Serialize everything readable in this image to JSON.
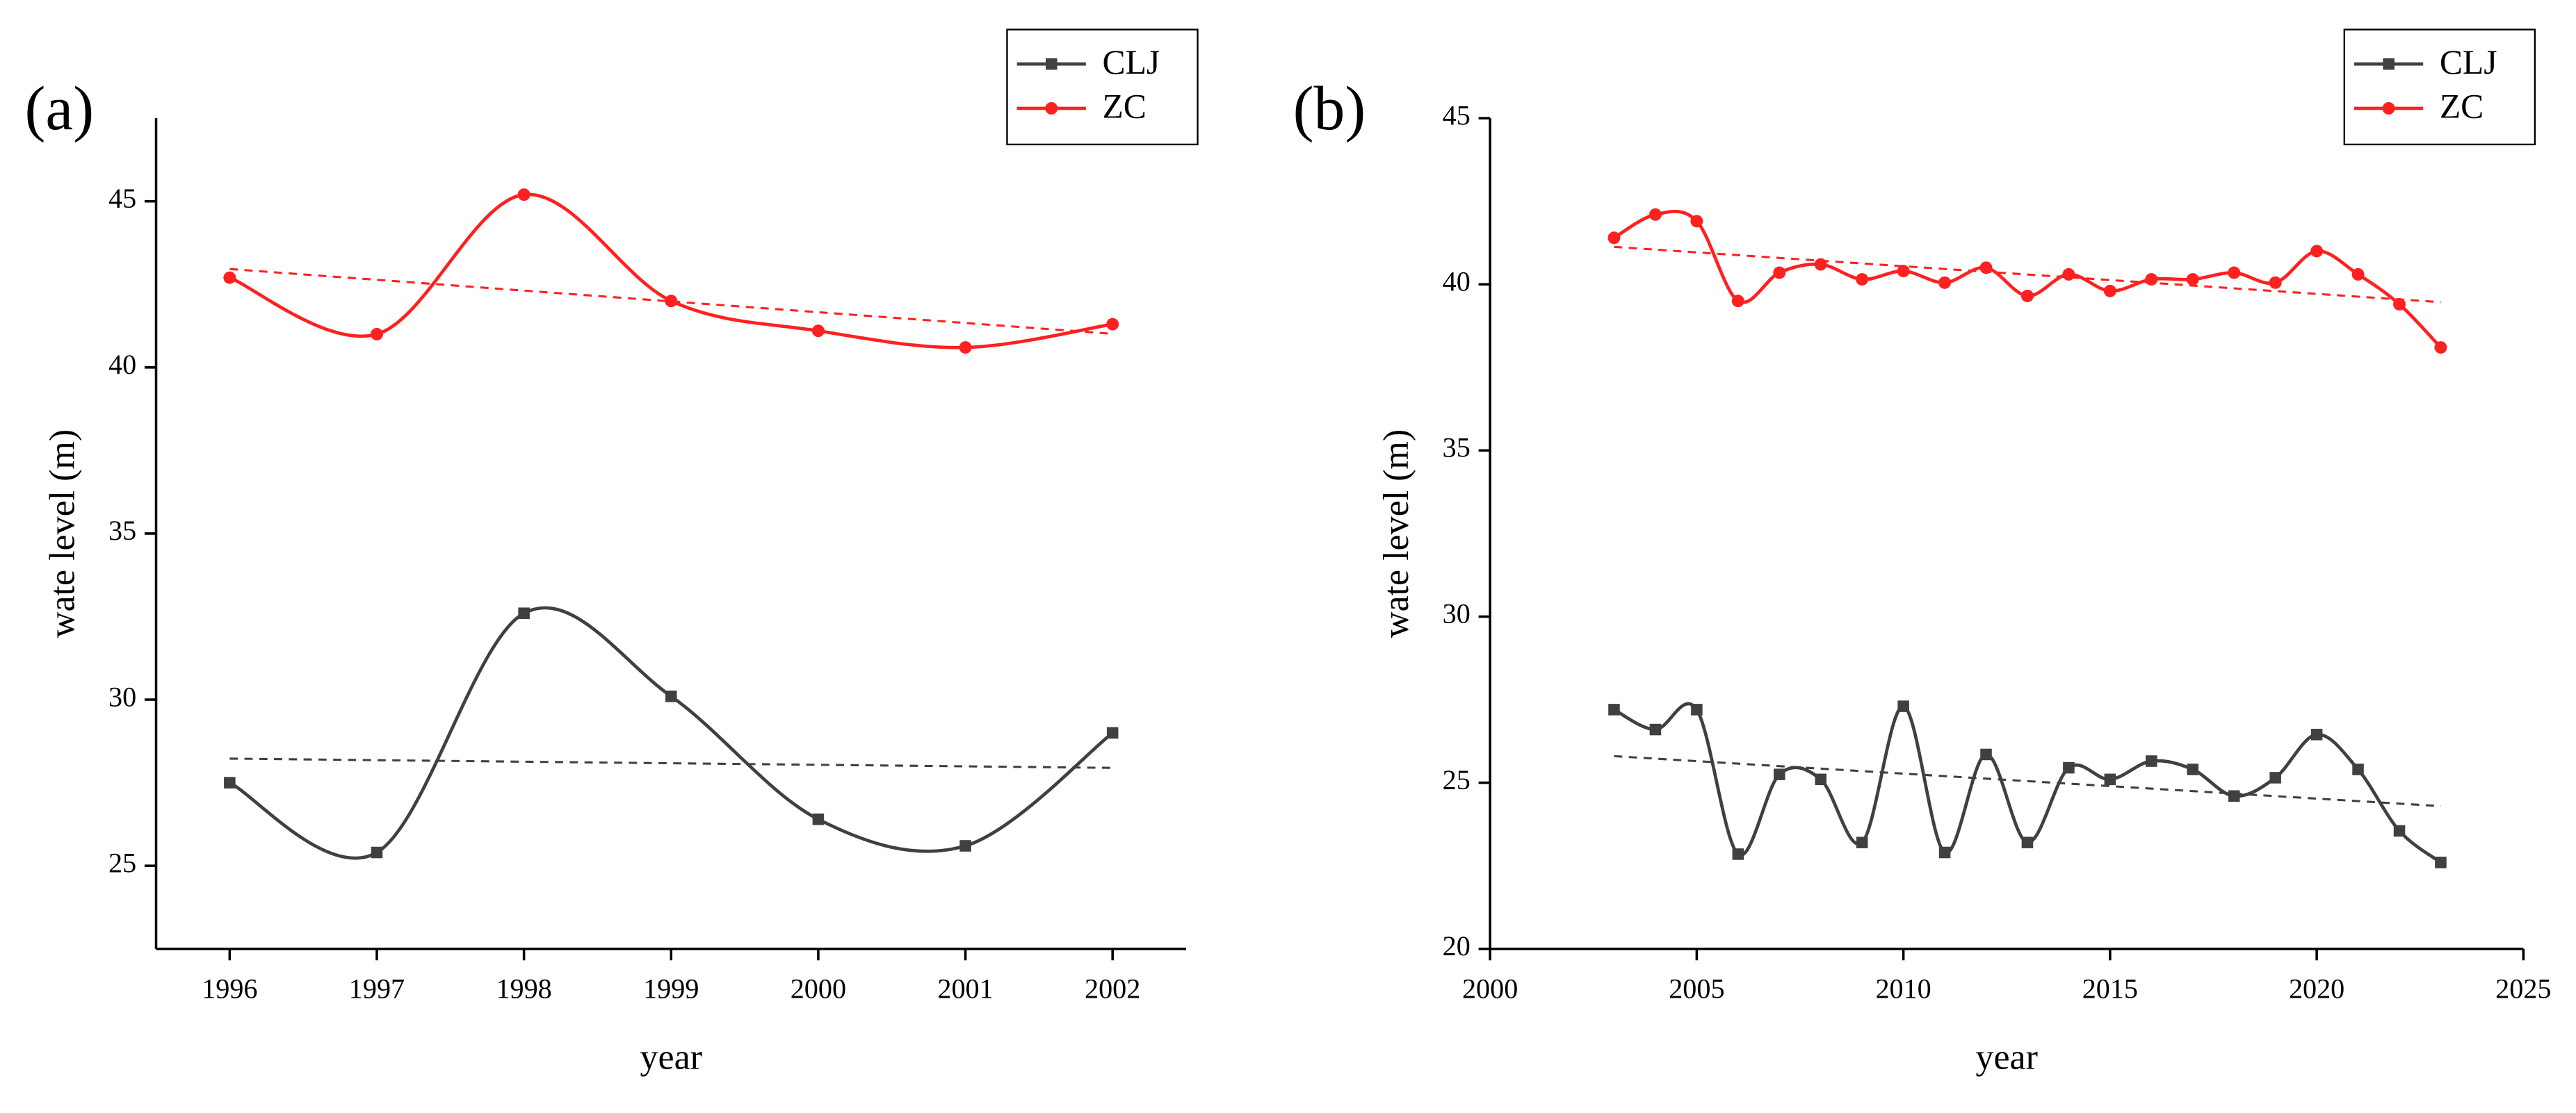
{
  "chart_data": [
    {
      "type": "line",
      "panel_label": "(a)",
      "x_label": "year",
      "y_label": "wate level (m)",
      "x": [
        1996,
        1997,
        1998,
        1999,
        2000,
        2001,
        2002
      ],
      "series": [
        {
          "name": "CLJ",
          "color": "#404040",
          "marker": "square",
          "values": [
            27.5,
            25.4,
            32.6,
            30.1,
            26.4,
            25.6,
            29.0
          ]
        },
        {
          "name": "ZC",
          "color": "#ff2020",
          "marker": "circle",
          "values": [
            42.7,
            41.0,
            45.2,
            42.0,
            41.1,
            40.6,
            41.3
          ]
        }
      ],
      "xlim": [
        1995.5,
        2002.5
      ],
      "xticks": [
        1996,
        1997,
        1998,
        1999,
        2000,
        2001,
        2002
      ],
      "ylim": [
        22.5,
        47.5
      ],
      "yticks": [
        25,
        30,
        35,
        40,
        45
      ],
      "smooth": true,
      "trend_line": true,
      "legend": "upper right"
    },
    {
      "type": "line",
      "panel_label": "(b)",
      "x_label": "year",
      "y_label": "wate level (m)",
      "x": [
        2003,
        2004,
        2005,
        2006,
        2007,
        2008,
        2009,
        2010,
        2011,
        2012,
        2013,
        2014,
        2015,
        2016,
        2017,
        2018,
        2019,
        2020,
        2021,
        2022,
        2023
      ],
      "series": [
        {
          "name": "CLJ",
          "color": "#404040",
          "marker": "square",
          "values": [
            27.2,
            26.6,
            27.2,
            22.85,
            25.25,
            25.1,
            23.2,
            27.3,
            22.9,
            25.85,
            23.2,
            25.45,
            25.1,
            25.65,
            25.4,
            24.6,
            25.15,
            26.45,
            25.4,
            23.55,
            22.6
          ]
        },
        {
          "name": "ZC",
          "color": "#ff2020",
          "marker": "circle",
          "values": [
            41.4,
            42.1,
            41.9,
            39.5,
            40.35,
            40.6,
            40.15,
            40.4,
            40.05,
            40.5,
            39.65,
            40.3,
            39.8,
            40.15,
            40.15,
            40.35,
            40.05,
            41.0,
            40.3,
            39.4,
            38.1
          ]
        }
      ],
      "xlim": [
        2000,
        2025
      ],
      "xticks": [
        2000,
        2005,
        2010,
        2015,
        2020,
        2025
      ],
      "ylim": [
        20,
        45
      ],
      "yticks": [
        20,
        25,
        30,
        35,
        40,
        45
      ],
      "smooth": true,
      "trend_line": true,
      "legend": "upper right"
    }
  ]
}
